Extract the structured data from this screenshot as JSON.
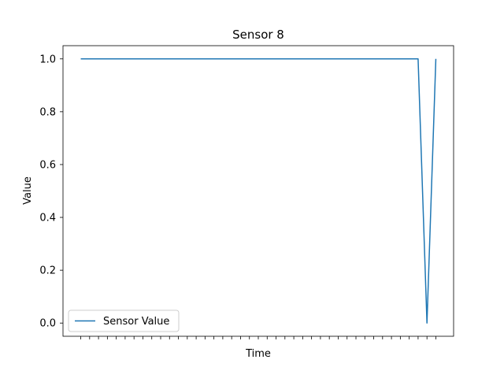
{
  "chart_data": {
    "type": "line",
    "title": "Sensor 8",
    "xlabel": "Time",
    "ylabel": "Value",
    "x_tick_count": 41,
    "x_tick_labels_visible": false,
    "ylim": [
      -0.05,
      1.05
    ],
    "xlim": [
      -2,
      42
    ],
    "yticks": [
      "0.0",
      "0.2",
      "0.4",
      "0.6",
      "0.8",
      "1.0"
    ],
    "ytick_values": [
      0.0,
      0.2,
      0.4,
      0.6,
      0.8,
      1.0
    ],
    "grid": false,
    "legend": "lower-left",
    "series": [
      {
        "name": "Sensor Value",
        "color": "#1f77b4",
        "x": [
          0,
          1,
          2,
          3,
          4,
          5,
          6,
          7,
          8,
          9,
          10,
          11,
          12,
          13,
          14,
          15,
          16,
          17,
          18,
          19,
          20,
          21,
          22,
          23,
          24,
          25,
          26,
          27,
          28,
          29,
          30,
          31,
          32,
          33,
          34,
          35,
          36,
          37,
          38,
          39,
          40
        ],
        "values": [
          1,
          1,
          1,
          1,
          1,
          1,
          1,
          1,
          1,
          1,
          1,
          1,
          1,
          1,
          1,
          1,
          1,
          1,
          1,
          1,
          1,
          1,
          1,
          1,
          1,
          1,
          1,
          1,
          1,
          1,
          1,
          1,
          1,
          1,
          1,
          1,
          1,
          1,
          1,
          0,
          1
        ]
      }
    ]
  }
}
